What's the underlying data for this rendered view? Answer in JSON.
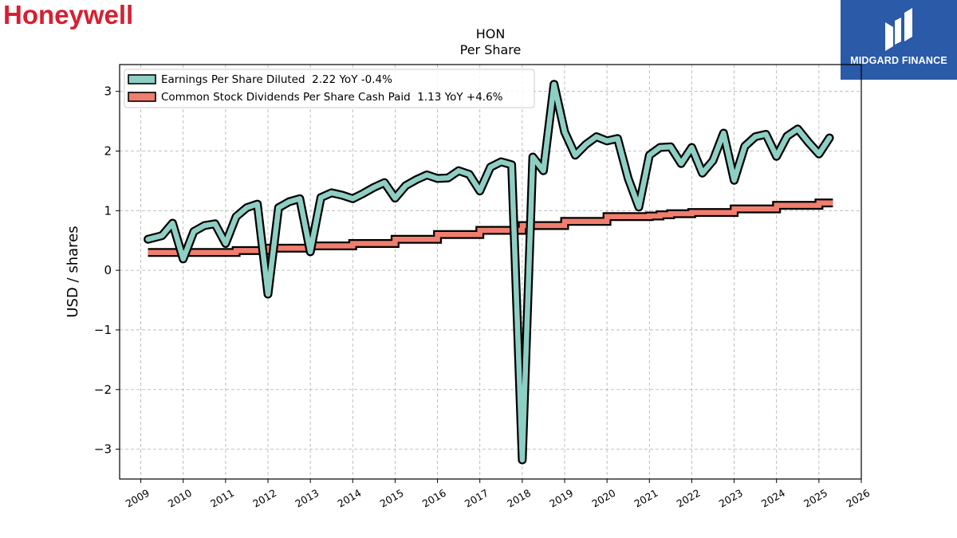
{
  "brand": {
    "logo_text": "Honeywell",
    "logo_color": "#d71f31"
  },
  "partner": {
    "name": "MIDGARD FINANCE",
    "background": "#2a5aa8",
    "icon": "midgard-logo-icon"
  },
  "chart_data": {
    "type": "line",
    "title": "HON",
    "subtitle": "Per  Share",
    "xlabel": "",
    "ylabel": "USD / shares",
    "xlim": [
      2008.5,
      2026.0
    ],
    "ylim": [
      -3.5,
      3.45
    ],
    "xticks": [
      2009,
      2010,
      2011,
      2012,
      2013,
      2014,
      2015,
      2016,
      2017,
      2018,
      2019,
      2020,
      2021,
      2022,
      2023,
      2024,
      2025,
      2026
    ],
    "yticks": [
      -3,
      -2,
      -1,
      0,
      1,
      2,
      3
    ],
    "grid": true,
    "legend_position": "top-left",
    "series": [
      {
        "name": "Earnings Per Share Diluted  2.22 YoY -0.4%",
        "color": "#8ecfc4",
        "step": false,
        "x": [
          2009.17,
          2009.5,
          2009.75,
          2010.0,
          2010.25,
          2010.5,
          2010.75,
          2011.0,
          2011.25,
          2011.5,
          2011.75,
          2012.0,
          2012.25,
          2012.5,
          2012.75,
          2013.0,
          2013.25,
          2013.5,
          2013.75,
          2014.0,
          2014.25,
          2014.5,
          2014.75,
          2015.0,
          2015.25,
          2015.5,
          2015.75,
          2016.0,
          2016.25,
          2016.5,
          2016.75,
          2017.0,
          2017.25,
          2017.5,
          2017.75,
          2018.0,
          2018.25,
          2018.5,
          2018.75,
          2019.0,
          2019.25,
          2019.5,
          2019.75,
          2020.0,
          2020.25,
          2020.5,
          2020.75,
          2021.0,
          2021.25,
          2021.5,
          2021.75,
          2022.0,
          2022.25,
          2022.5,
          2022.75,
          2023.0,
          2023.25,
          2023.5,
          2023.75,
          2024.0,
          2024.25,
          2024.5,
          2024.75,
          2025.0,
          2025.25
        ],
        "y": [
          0.52,
          0.58,
          0.79,
          0.19,
          0.65,
          0.75,
          0.78,
          0.45,
          0.9,
          1.05,
          1.11,
          -0.4,
          1.05,
          1.15,
          1.2,
          0.31,
          1.22,
          1.3,
          1.26,
          1.2,
          1.29,
          1.39,
          1.47,
          1.21,
          1.42,
          1.52,
          1.6,
          1.54,
          1.55,
          1.67,
          1.61,
          1.33,
          1.73,
          1.82,
          1.77,
          -3.18,
          1.9,
          1.67,
          3.12,
          2.32,
          1.93,
          2.11,
          2.24,
          2.17,
          2.21,
          1.54,
          1.06,
          1.93,
          2.06,
          2.07,
          1.79,
          2.06,
          1.63,
          1.84,
          2.3,
          1.51,
          2.08,
          2.24,
          2.28,
          1.91,
          2.25,
          2.37,
          2.15,
          1.95,
          2.22
        ]
      },
      {
        "name": "Common Stock Dividends Per Share Cash Paid  1.13 YoY +4.6%",
        "color": "#f07e6e",
        "step": true,
        "x": [
          2009.17,
          2011.25,
          2012.0,
          2013.0,
          2014.0,
          2015.0,
          2016.0,
          2017.0,
          2018.0,
          2019.0,
          2020.0,
          2021.0,
          2021.25,
          2021.5,
          2022.0,
          2023.0,
          2024.0,
          2025.0,
          2025.33
        ],
        "y": [
          0.3,
          0.33,
          0.37,
          0.41,
          0.45,
          0.52,
          0.6,
          0.67,
          0.75,
          0.82,
          0.9,
          0.91,
          0.93,
          0.95,
          0.97,
          1.03,
          1.09,
          1.13,
          1.13
        ]
      }
    ]
  }
}
